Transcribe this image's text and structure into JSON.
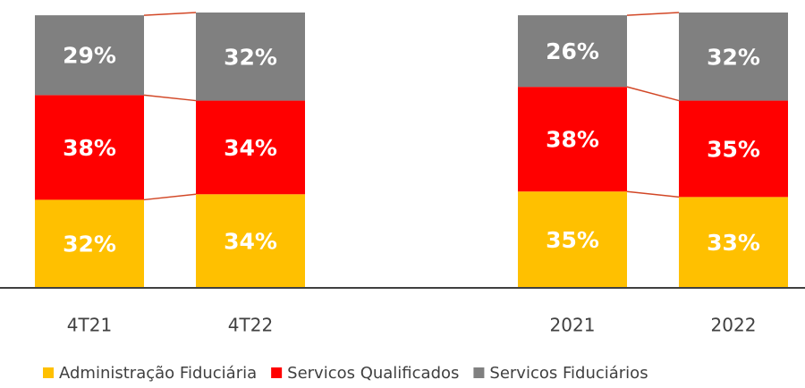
{
  "chart_data": {
    "type": "stacked_bar",
    "categories": [
      "4T21",
      "4T22",
      null,
      "2021",
      "2022"
    ],
    "series": [
      {
        "name": "Administração Fiduciária",
        "color": "#FFC000",
        "values": [
          32,
          34,
          null,
          35,
          33
        ],
        "value_labels": [
          "32%",
          "34%",
          null,
          "35%",
          "33%"
        ]
      },
      {
        "name": "Servicos Qualificados",
        "color": "#FF0000",
        "values": [
          38,
          34,
          null,
          38,
          35
        ],
        "value_labels": [
          "38%",
          "34%",
          null,
          "38%",
          "35%"
        ]
      },
      {
        "name": "Servicos Fiduciários",
        "color": "#808080",
        "values": [
          29,
          32,
          null,
          26,
          32
        ],
        "value_labels": [
          "29%",
          "32%",
          null,
          "26%",
          "32%"
        ]
      }
    ],
    "ylim": [
      0,
      100
    ]
  }
}
